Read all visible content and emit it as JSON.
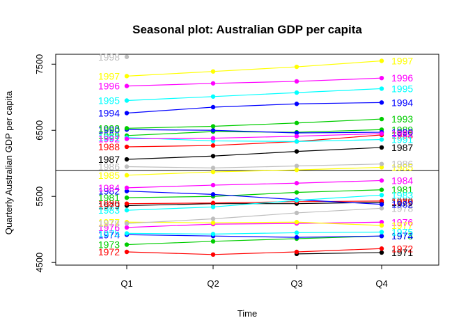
{
  "chart_data": {
    "type": "line",
    "title": "Seasonal plot: Australian GDP per capita",
    "xlabel": "Time",
    "ylabel": "Quarterly Australian GDP per capita",
    "categories": [
      "Q1",
      "Q2",
      "Q3",
      "Q4"
    ],
    "yticks": [
      "4500",
      "5500",
      "6500",
      "7500"
    ],
    "ylim": [
      4460,
      7650
    ],
    "grid": false,
    "legend": "none",
    "series": [
      {
        "name": "1971",
        "color": "#000000",
        "values": [
          null,
          null,
          4630,
          4650
        ]
      },
      {
        "name": "1972",
        "color": "#ff0000",
        "values": [
          4660,
          4620,
          4660,
          4710
        ]
      },
      {
        "name": "1973",
        "color": "#00cd00",
        "values": [
          4770,
          4820,
          4860,
          4900
        ]
      },
      {
        "name": "1974",
        "color": "#0000ff",
        "values": [
          4920,
          4900,
          4880,
          4900
        ]
      },
      {
        "name": "1975",
        "color": "#00ffff",
        "values": [
          4940,
          4930,
          4950,
          4960
        ]
      },
      {
        "name": "1976",
        "color": "#ff00ff",
        "values": [
          5030,
          5080,
          5090,
          5110
        ]
      },
      {
        "name": "1977",
        "color": "#ffff00",
        "values": [
          5110,
          5100,
          5110,
          5060
        ]
      },
      {
        "name": "1978",
        "color": "#bebebe",
        "values": [
          5090,
          5160,
          5250,
          5320
        ]
      },
      {
        "name": "1979",
        "color": "#000000",
        "values": [
          5360,
          5390,
          5390,
          5410
        ]
      },
      {
        "name": "1980",
        "color": "#ff0000",
        "values": [
          5390,
          5400,
          5420,
          5430
        ]
      },
      {
        "name": "1981",
        "color": "#00cd00",
        "values": [
          5480,
          5500,
          5560,
          5600
        ]
      },
      {
        "name": "1982",
        "color": "#0000ff",
        "values": [
          5580,
          5530,
          5450,
          5380
        ]
      },
      {
        "name": "1983",
        "color": "#00ffff",
        "values": [
          5290,
          5340,
          5440,
          5520
        ]
      },
      {
        "name": "1984",
        "color": "#ff00ff",
        "values": [
          5630,
          5670,
          5700,
          5740
        ]
      },
      {
        "name": "1985",
        "color": "#ffff00",
        "values": [
          5820,
          5870,
          5900,
          5940
        ]
      },
      {
        "name": "1986",
        "color": "#bebebe",
        "values": [
          5950,
          5930,
          5960,
          5990
        ]
      },
      {
        "name": "1987",
        "color": "#000000",
        "values": [
          6060,
          6110,
          6180,
          6240
        ]
      },
      {
        "name": "1988",
        "color": "#ff0000",
        "values": [
          6250,
          6270,
          6330,
          6430
        ]
      },
      {
        "name": "1989",
        "color": "#00cd00",
        "values": [
          6420,
          6480,
          6470,
          6510
        ]
      },
      {
        "name": "1990",
        "color": "#0000ff",
        "values": [
          6510,
          6500,
          6460,
          6470
        ]
      },
      {
        "name": "1991",
        "color": "#00ffff",
        "values": [
          6390,
          6340,
          6330,
          6360
        ]
      },
      {
        "name": "1992",
        "color": "#ff00ff",
        "values": [
          6370,
          6380,
          6410,
          6450
        ]
      },
      {
        "name": "1993",
        "color": "#00cd00",
        "values": [
          6530,
          6560,
          6610,
          6670
        ]
      },
      {
        "name": "1994",
        "color": "#0000ff",
        "values": [
          6760,
          6850,
          6900,
          6920
        ]
      },
      {
        "name": "1995",
        "color": "#00ffff",
        "values": [
          6950,
          7010,
          7070,
          7130
        ]
      },
      {
        "name": "1996",
        "color": "#ff00ff",
        "values": [
          7170,
          7210,
          7240,
          7290
        ]
      },
      {
        "name": "1997",
        "color": "#ffff00",
        "values": [
          7320,
          7390,
          7460,
          7550
        ]
      },
      {
        "name": "1998",
        "color": "#bebebe",
        "values": [
          7610,
          null,
          null,
          null
        ]
      }
    ],
    "horizontal_line": 5890
  }
}
